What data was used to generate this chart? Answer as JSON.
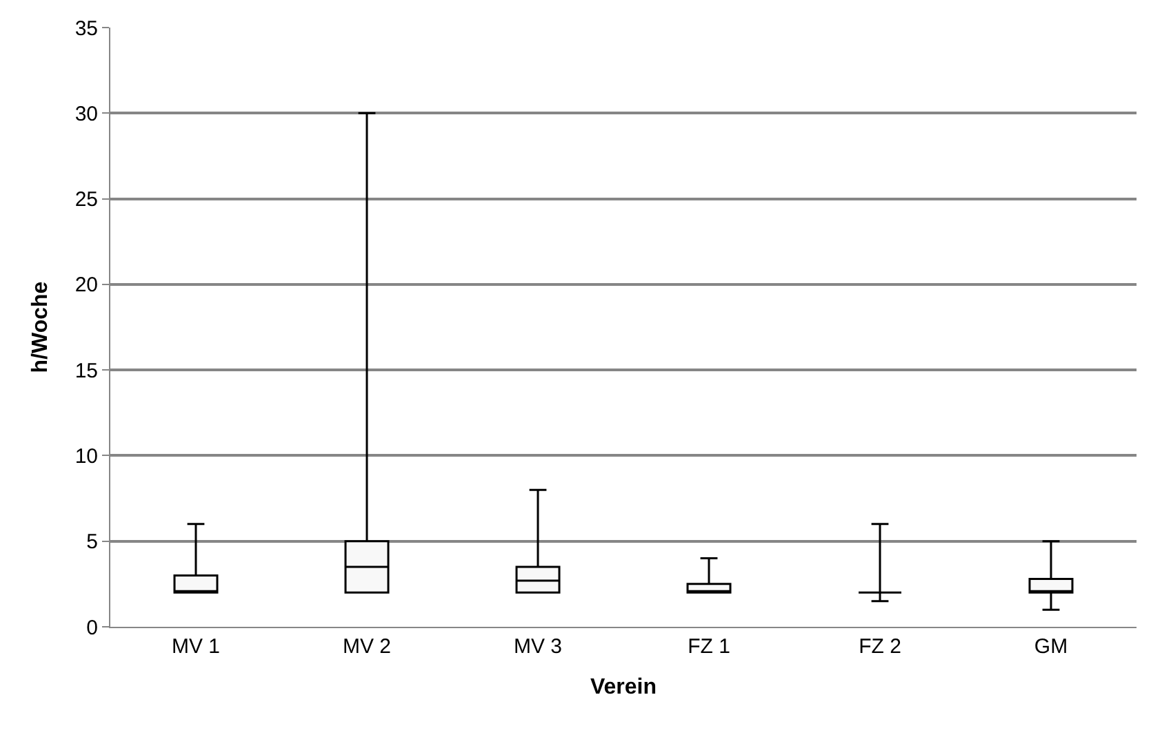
{
  "chart_data": {
    "type": "box",
    "xlabel": "Verein",
    "ylabel": "h/Woche",
    "categories": [
      "MV 1",
      "MV 2",
      "MV 3",
      "FZ 1",
      "FZ 2",
      "GM"
    ],
    "boxes": [
      {
        "low": 2,
        "q1": 2,
        "median": 2,
        "q3": 3,
        "high": 6
      },
      {
        "low": 2,
        "q1": 2,
        "median": 3.5,
        "q3": 5,
        "high": 30
      },
      {
        "low": 2,
        "q1": 2,
        "median": 2.7,
        "q3": 3.5,
        "high": 8
      },
      {
        "low": 2,
        "q1": 2,
        "median": 2,
        "q3": 2.5,
        "high": 4
      },
      {
        "low": 1.5,
        "q1": 2,
        "median": 2,
        "q3": 2,
        "high": 6
      },
      {
        "low": 1,
        "q1": 2,
        "median": 2,
        "q3": 2.8,
        "high": 5
      }
    ],
    "color": "#000000",
    "ylim": [
      0,
      35
    ],
    "yticks": [
      0,
      5,
      10,
      15,
      20,
      25,
      30,
      35
    ],
    "grid": "y"
  }
}
